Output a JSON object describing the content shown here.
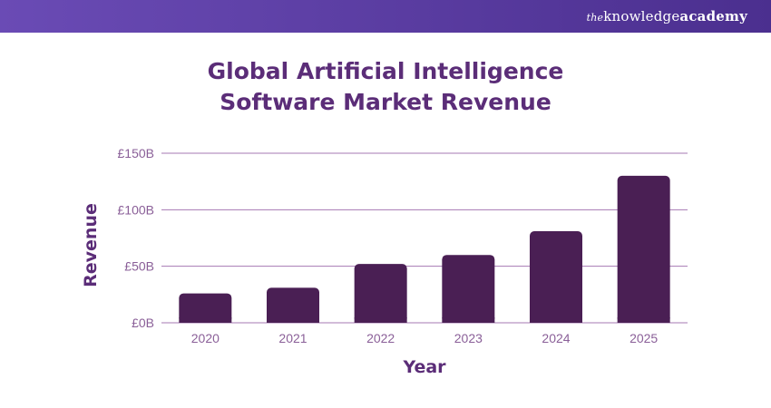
{
  "brand": {
    "prefix": "the",
    "middle": "knowledge",
    "suffix": "academy"
  },
  "chart_data": {
    "type": "bar",
    "title_line1": "Global Artificial Intelligence",
    "title_line2": "Software Market Revenue",
    "xlabel": "Year",
    "ylabel": "Revenue",
    "categories": [
      "2020",
      "2021",
      "2022",
      "2023",
      "2024",
      "2025"
    ],
    "values": [
      26,
      31,
      52,
      60,
      81,
      130
    ],
    "yticks": [
      0,
      50,
      100,
      150
    ],
    "ytick_labels": [
      "£0B",
      "£50B",
      "£100B",
      "£150B"
    ],
    "ylim": [
      0,
      150
    ],
    "grid": true,
    "colors": {
      "bar": "#4a1f54",
      "grid": "#a678b3",
      "tick": "#8a5f98",
      "axis_label": "#5b2d78",
      "header": "#5b3da6"
    }
  }
}
